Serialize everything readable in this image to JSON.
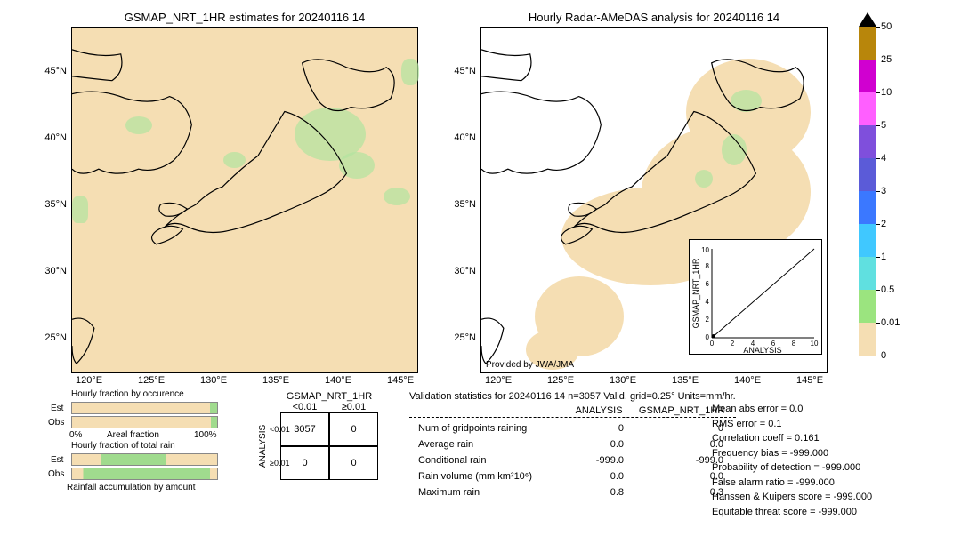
{
  "left_map": {
    "title": "GSMAP_NRT_1HR estimates for 20240116 14",
    "background": "#f5deb3",
    "xticks": [
      "120°E",
      "125°E",
      "130°E",
      "135°E",
      "140°E",
      "145°E"
    ],
    "yticks": [
      "45°N",
      "40°N",
      "35°N",
      "30°N",
      "25°N"
    ]
  },
  "right_map": {
    "title": "Hourly Radar-AMeDAS analysis for 20240116 14",
    "background": "#ffffff",
    "xticks": [
      "120°E",
      "125°E",
      "130°E",
      "135°E",
      "140°E",
      "145°E"
    ],
    "yticks": [
      "45°N",
      "40°N",
      "35°N",
      "30°N",
      "25°N"
    ],
    "provided": "Provided by JWA/JMA",
    "scatter": {
      "xlabel": "ANALYSIS",
      "ylabel": "GSMAP_NRT_1HR",
      "lim": [
        0,
        10
      ],
      "ticks": [
        0,
        2,
        4,
        6,
        8,
        10
      ]
    }
  },
  "colorbar": {
    "ticks": [
      "50",
      "25",
      "10",
      "5",
      "4",
      "3",
      "2",
      "1",
      "0.5",
      "0.01",
      "0"
    ],
    "colors": [
      "#b8860b",
      "#d000d0",
      "#ff5fff",
      "#7f4fdc",
      "#5b5bd8",
      "#3b78ff",
      "#40c8ff",
      "#60e0e0",
      "#9be47f",
      "#f5deb3"
    ],
    "cap_color": "#000000"
  },
  "frac_occ": {
    "title": "Hourly fraction by occurence",
    "rows": [
      "Est",
      "Obs"
    ],
    "green_pct": [
      5,
      4
    ],
    "axis_label": "Areal fraction",
    "axis_min": "0%",
    "axis_max": "100%"
  },
  "frac_total": {
    "title": "Hourly fraction of total rain",
    "rows": [
      "Est",
      "Obs"
    ],
    "green_pct": [
      65,
      95
    ],
    "rain_accum_label": "Rainfall accumulation by amount"
  },
  "contingency": {
    "col_header": "GSMAP_NRT_1HR",
    "row_header": "ANALYSIS",
    "col_labels": [
      "<0.01",
      "≥0.01"
    ],
    "row_labels": [
      "<0.01",
      "≥0.01"
    ],
    "cells": [
      [
        3057,
        0
      ],
      [
        0,
        0
      ]
    ]
  },
  "stats": {
    "title": "Validation statistics for 20240116 14  n=3057 Valid. grid=0.25°  Units=mm/hr.",
    "cols": [
      "ANALYSIS",
      "GSMAP_NRT_1HR"
    ],
    "rows": [
      {
        "label": "Num of gridpoints raining",
        "a": "0",
        "b": "0"
      },
      {
        "label": "Average rain",
        "a": "0.0",
        "b": "0.0"
      },
      {
        "label": "Conditional rain",
        "a": "-999.0",
        "b": "-999.0"
      },
      {
        "label": "Rain volume (mm km²10⁶)",
        "a": "0.0",
        "b": "0.0"
      },
      {
        "label": "Maximum rain",
        "a": "0.8",
        "b": "0.3"
      }
    ]
  },
  "metrics": [
    "Mean abs error =    0.0",
    "RMS error =    0.1",
    "Correlation coeff =  0.161",
    "Frequency bias = -999.000",
    "Probability of detection =  -999.000",
    "False alarm ratio = -999.000",
    "Hanssen & Kuipers score = -999.000",
    "Equitable threat score = -999.000"
  ]
}
